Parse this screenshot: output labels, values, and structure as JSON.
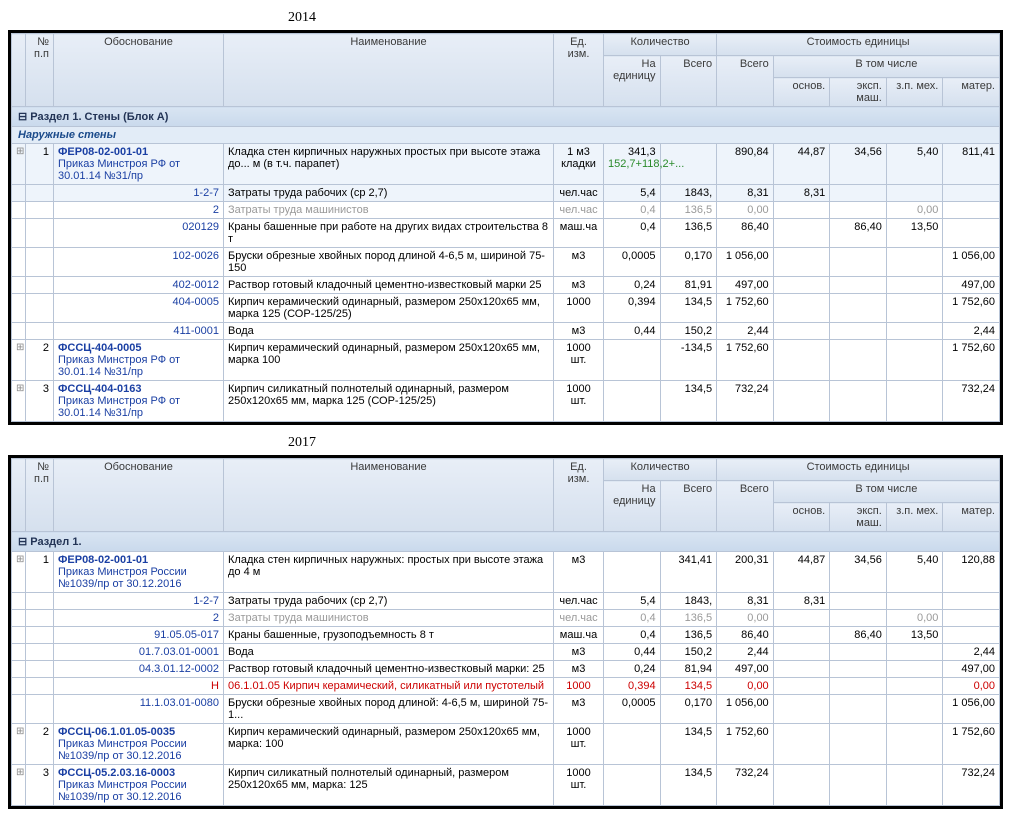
{
  "labels": {
    "year2014": "2014",
    "year2017": "2017"
  },
  "headers": {
    "num": "№\nп.п",
    "obos": "Обоснование",
    "naim": "Наименование",
    "ed": "Ед. изм.",
    "qty_group": "Количество",
    "qty_unit": "На единицу",
    "qty_total": "Всего",
    "cost_group": "Стоимость единицы",
    "vsego": "Всего",
    "vtom": "В том числе",
    "osnov": "основ.",
    "eksp": "эксп. маш.",
    "zpmeh": "з.п. мех.",
    "mater": "матер."
  },
  "t2014": {
    "section": "Раздел 1. Стены  (Блок А)",
    "subsection": "Наружные стены",
    "rows": [
      {
        "type": "main",
        "n": "1",
        "code": "ФЕР08-02-001-01",
        "order": "Приказ Минстроя РФ от 30.01.14 №31/пр",
        "naim": "Кладка стен кирпичных наружных простых при высоте этажа до... м (в т.ч. парапет)",
        "ed": "1 м3 кладки",
        "q1": "341,3",
        "q1b": "152,7+118,2+...",
        "q1green": true,
        "q2": "",
        "vsego": "890,84",
        "osn": "44,87",
        "eksp": "34,56",
        "zp": "5,40",
        "mat": "811,41",
        "hl": true
      },
      {
        "type": "sub",
        "code": "1-2-7",
        "naim": "Затраты труда рабочих (ср 2,7)",
        "ed": "чел.час",
        "q1": "5,4",
        "q2": "1843,",
        "vsego": "8,31",
        "osn": "8,31",
        "eksp": "",
        "zp": "",
        "mat": "",
        "hl": true
      },
      {
        "type": "sub",
        "code": "2",
        "naim": "Затраты труда машинистов",
        "ed": "чел.час",
        "q1": "0,4",
        "q2": "136,5",
        "vsego": "0,00",
        "osn": "",
        "eksp": "",
        "zp": "0,00",
        "mat": "",
        "grey": true
      },
      {
        "type": "sub",
        "code": "020129",
        "naim": "Краны башенные при работе на других видах строительства 8 т",
        "ed": "маш.ча",
        "q1": "0,4",
        "q2": "136,5",
        "vsego": "86,40",
        "osn": "",
        "eksp": "86,40",
        "zp": "13,50",
        "mat": ""
      },
      {
        "type": "sub",
        "code": "102-0026",
        "naim": "Бруски обрезные хвойных пород длиной 4-6,5 м, шириной 75-150",
        "ed": "м3",
        "q1": "0,0005",
        "q2": "0,170",
        "vsego": "1 056,00",
        "osn": "",
        "eksp": "",
        "zp": "",
        "mat": "1 056,00"
      },
      {
        "type": "sub",
        "code": "402-0012",
        "naim": "Раствор готовый кладочный цементно-известковый марки 25",
        "ed": "м3",
        "q1": "0,24",
        "q2": "81,91",
        "vsego": "497,00",
        "osn": "",
        "eksp": "",
        "zp": "",
        "mat": "497,00"
      },
      {
        "type": "sub",
        "code": "404-0005",
        "naim": "Кирпич керамический одинарный, размером 250x120x65 мм, марка 125 (СОР-125/25)",
        "ed": "1000",
        "q1": "0,394",
        "q2": "134,5",
        "vsego": "1 752,60",
        "osn": "",
        "eksp": "",
        "zp": "",
        "mat": "1 752,60"
      },
      {
        "type": "sub",
        "code": "411-0001",
        "naim": "Вода",
        "ed": "м3",
        "q1": "0,44",
        "q2": "150,2",
        "vsego": "2,44",
        "osn": "",
        "eksp": "",
        "zp": "",
        "mat": "2,44"
      },
      {
        "type": "main",
        "n": "2",
        "code": "ФССЦ-404-0005",
        "order": "Приказ Минстроя РФ от 30.01.14 №31/пр",
        "naim": "Кирпич керамический одинарный, размером 250x120x65 мм, марка 100",
        "ed": "1000 шт.",
        "q1": "",
        "q2": "-134,5",
        "vsego": "1 752,60",
        "osn": "",
        "eksp": "",
        "zp": "",
        "mat": "1 752,60"
      },
      {
        "type": "main",
        "n": "3",
        "code": "ФССЦ-404-0163",
        "order": "Приказ Минстроя РФ от 30.01.14 №31/пр",
        "naim": "Кирпич силикатный полнотелый одинарный, размером 250x120x65 мм, марка 125 (СОР-125/25)",
        "ed": "1000 шт.",
        "q1": "",
        "q2": "134,5",
        "vsego": "732,24",
        "osn": "",
        "eksp": "",
        "zp": "",
        "mat": "732,24"
      }
    ]
  },
  "t2017": {
    "section": "Раздел 1.",
    "rows": [
      {
        "type": "main",
        "n": "1",
        "code": "ФЕР08-02-001-01",
        "order": "Приказ Минстроя России №1039/пр от 30.12.2016",
        "naim": "Кладка стен кирпичных наружных: простых при высоте этажа до 4 м",
        "ed": "м3",
        "q1": "",
        "q2": "341,41",
        "vsego": "200,31",
        "osn": "44,87",
        "eksp": "34,56",
        "zp": "5,40",
        "mat": "120,88"
      },
      {
        "type": "sub",
        "code": "1-2-7",
        "naim": "Затраты труда рабочих (ср 2,7)",
        "ed": "чел.час",
        "q1": "5,4",
        "q2": "1843,",
        "vsego": "8,31",
        "osn": "8,31",
        "eksp": "",
        "zp": "",
        "mat": ""
      },
      {
        "type": "sub",
        "code": "2",
        "naim": "Затраты труда машинистов",
        "ed": "чел.час",
        "q1": "0,4",
        "q2": "136,5",
        "vsego": "0,00",
        "osn": "",
        "eksp": "",
        "zp": "0,00",
        "mat": "",
        "grey": true
      },
      {
        "type": "sub",
        "code": "91.05.05-017",
        "naim": "Краны башенные, грузоподъемность 8 т",
        "ed": "маш.ча",
        "q1": "0,4",
        "q2": "136,5",
        "vsego": "86,40",
        "osn": "",
        "eksp": "86,40",
        "zp": "13,50",
        "mat": ""
      },
      {
        "type": "sub",
        "code": "01.7.03.01-0001",
        "naim": "Вода",
        "ed": "м3",
        "q1": "0,44",
        "q2": "150,2",
        "vsego": "2,44",
        "osn": "",
        "eksp": "",
        "zp": "",
        "mat": "2,44"
      },
      {
        "type": "sub",
        "code": "04.3.01.12-0002",
        "naim": "Раствор готовый кладочный цементно-известковый марки: 25",
        "ed": "м3",
        "q1": "0,24",
        "q2": "81,94",
        "vsego": "497,00",
        "osn": "",
        "eksp": "",
        "zp": "",
        "mat": "497,00"
      },
      {
        "type": "sub",
        "code": "Н",
        "code2": "06.1.01.05",
        "naim": "Кирпич керамический, силикатный или пустотелый",
        "ed": "1000",
        "q1": "0,394",
        "q2": "134,5",
        "vsego": "0,00",
        "osn": "",
        "eksp": "",
        "zp": "",
        "mat": "0,00",
        "red": true
      },
      {
        "type": "sub",
        "code": "11.1.03.01-0080",
        "naim": "Бруски обрезные хвойных пород длиной: 4-6,5 м, шириной 75-1...",
        "ed": "м3",
        "q1": "0,0005",
        "q2": "0,170",
        "vsego": "1 056,00",
        "osn": "",
        "eksp": "",
        "zp": "",
        "mat": "1 056,00"
      },
      {
        "type": "main",
        "n": "2",
        "code": "ФССЦ-06.1.01.05-0035",
        "order": "Приказ Минстроя России №1039/пр от 30.12.2016",
        "naim": "Кирпич керамический одинарный, размером 250x120x65 мм, марка: 100",
        "ed": "1000 шт.",
        "q1": "",
        "q2": "134,5",
        "vsego": "1 752,60",
        "osn": "",
        "eksp": "",
        "zp": "",
        "mat": "1 752,60"
      },
      {
        "type": "main",
        "n": "3",
        "code": "ФССЦ-05.2.03.16-0003",
        "order": "Приказ Минстроя России №1039/пр от 30.12.2016",
        "naim": "Кирпич силикатный полнотелый одинарный, размером 250x120x65 мм, марка: 125",
        "ed": "1000 шт.",
        "q1": "",
        "q2": "134,5",
        "vsego": "732,24",
        "osn": "",
        "eksp": "",
        "zp": "",
        "mat": "732,24"
      }
    ]
  }
}
